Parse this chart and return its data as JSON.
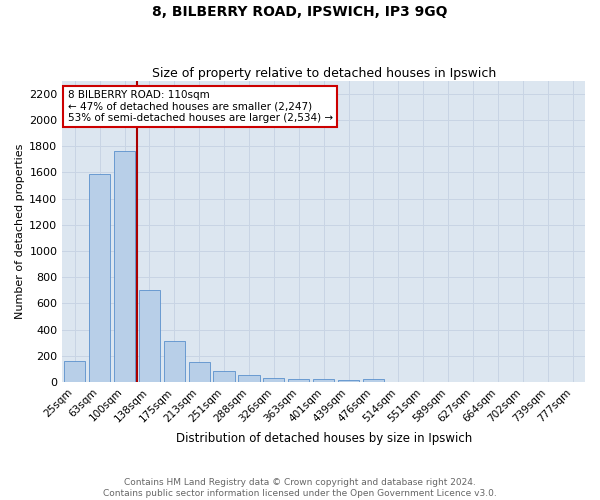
{
  "title": "8, BILBERRY ROAD, IPSWICH, IP3 9GQ",
  "subtitle": "Size of property relative to detached houses in Ipswich",
  "xlabel": "Distribution of detached houses by size in Ipswich",
  "ylabel": "Number of detached properties",
  "footer_line1": "Contains HM Land Registry data © Crown copyright and database right 2024.",
  "footer_line2": "Contains public sector information licensed under the Open Government Licence v3.0.",
  "bar_color": "#b8cfe8",
  "bar_edge_color": "#5a90cc",
  "grid_color": "#c8d4e4",
  "background_color": "#dce6f0",
  "categories": [
    "25sqm",
    "63sqm",
    "100sqm",
    "138sqm",
    "175sqm",
    "213sqm",
    "251sqm",
    "288sqm",
    "326sqm",
    "363sqm",
    "401sqm",
    "439sqm",
    "476sqm",
    "514sqm",
    "551sqm",
    "589sqm",
    "627sqm",
    "664sqm",
    "702sqm",
    "739sqm",
    "777sqm"
  ],
  "values": [
    160,
    1590,
    1760,
    700,
    310,
    155,
    85,
    50,
    30,
    20,
    20,
    15,
    20,
    0,
    0,
    0,
    0,
    0,
    0,
    0,
    0
  ],
  "ylim": [
    0,
    2300
  ],
  "yticks": [
    0,
    200,
    400,
    600,
    800,
    1000,
    1200,
    1400,
    1600,
    1800,
    2000,
    2200
  ],
  "red_line_index": 2.5,
  "annotation_line1": "8 BILBERRY ROAD: 110sqm",
  "annotation_line2": "← 47% of detached houses are smaller (2,247)",
  "annotation_line3": "53% of semi-detached houses are larger (2,534) →",
  "red_line_color": "#aa0000",
  "annotation_box_color": "#ffffff",
  "annotation_box_edge_color": "#cc0000",
  "title_fontsize": 10,
  "subtitle_fontsize": 9,
  "xlabel_fontsize": 8.5,
  "ylabel_fontsize": 8,
  "tick_fontsize": 7.5,
  "annotation_fontsize": 7.5,
  "footer_fontsize": 6.5,
  "footer_color": "#666666"
}
